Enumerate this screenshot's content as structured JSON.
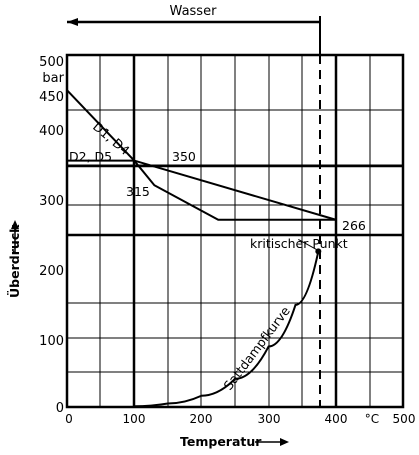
{
  "chart_data": {
    "type": "line",
    "xlabel": "Temperatur",
    "ylabel": "Überdruck",
    "y_unit": "bar",
    "x_unit": "°C",
    "xlim": [
      0,
      500
    ],
    "ylim": [
      0,
      500
    ],
    "x_ticks": [
      "0",
      "100",
      "200",
      "300",
      "400",
      "°C",
      "500"
    ],
    "y_ticks": [
      "0",
      "100",
      "200",
      "300",
      "400",
      "450",
      "500"
    ],
    "top_label": "Wasser",
    "annotations": {
      "d1d4": "D1, D4",
      "d2d5": "D2, D5",
      "p350": "350",
      "p315": "315",
      "p266": "266",
      "critical": "kritischer Punkt",
      "saturation": "Sattdampfkurve"
    },
    "series": [
      {
        "key": "d1d4",
        "points": [
          [
            0,
            450
          ],
          [
            100,
            350
          ],
          [
            130,
            315
          ],
          [
            225,
            266
          ],
          [
            400,
            266
          ]
        ]
      },
      {
        "key": "d2d5",
        "points": [
          [
            0,
            350
          ],
          [
            100,
            350
          ],
          [
            400,
            266
          ]
        ]
      },
      {
        "key": "saturation",
        "points": [
          [
            100,
            1
          ],
          [
            150,
            5
          ],
          [
            200,
            16
          ],
          [
            250,
            40
          ],
          [
            300,
            86
          ],
          [
            340,
            145
          ],
          [
            374,
            221
          ]
        ]
      }
    ],
    "critical_point": [
      374,
      221
    ],
    "water_limit_x": 374,
    "vertical_marker_x": 400
  }
}
